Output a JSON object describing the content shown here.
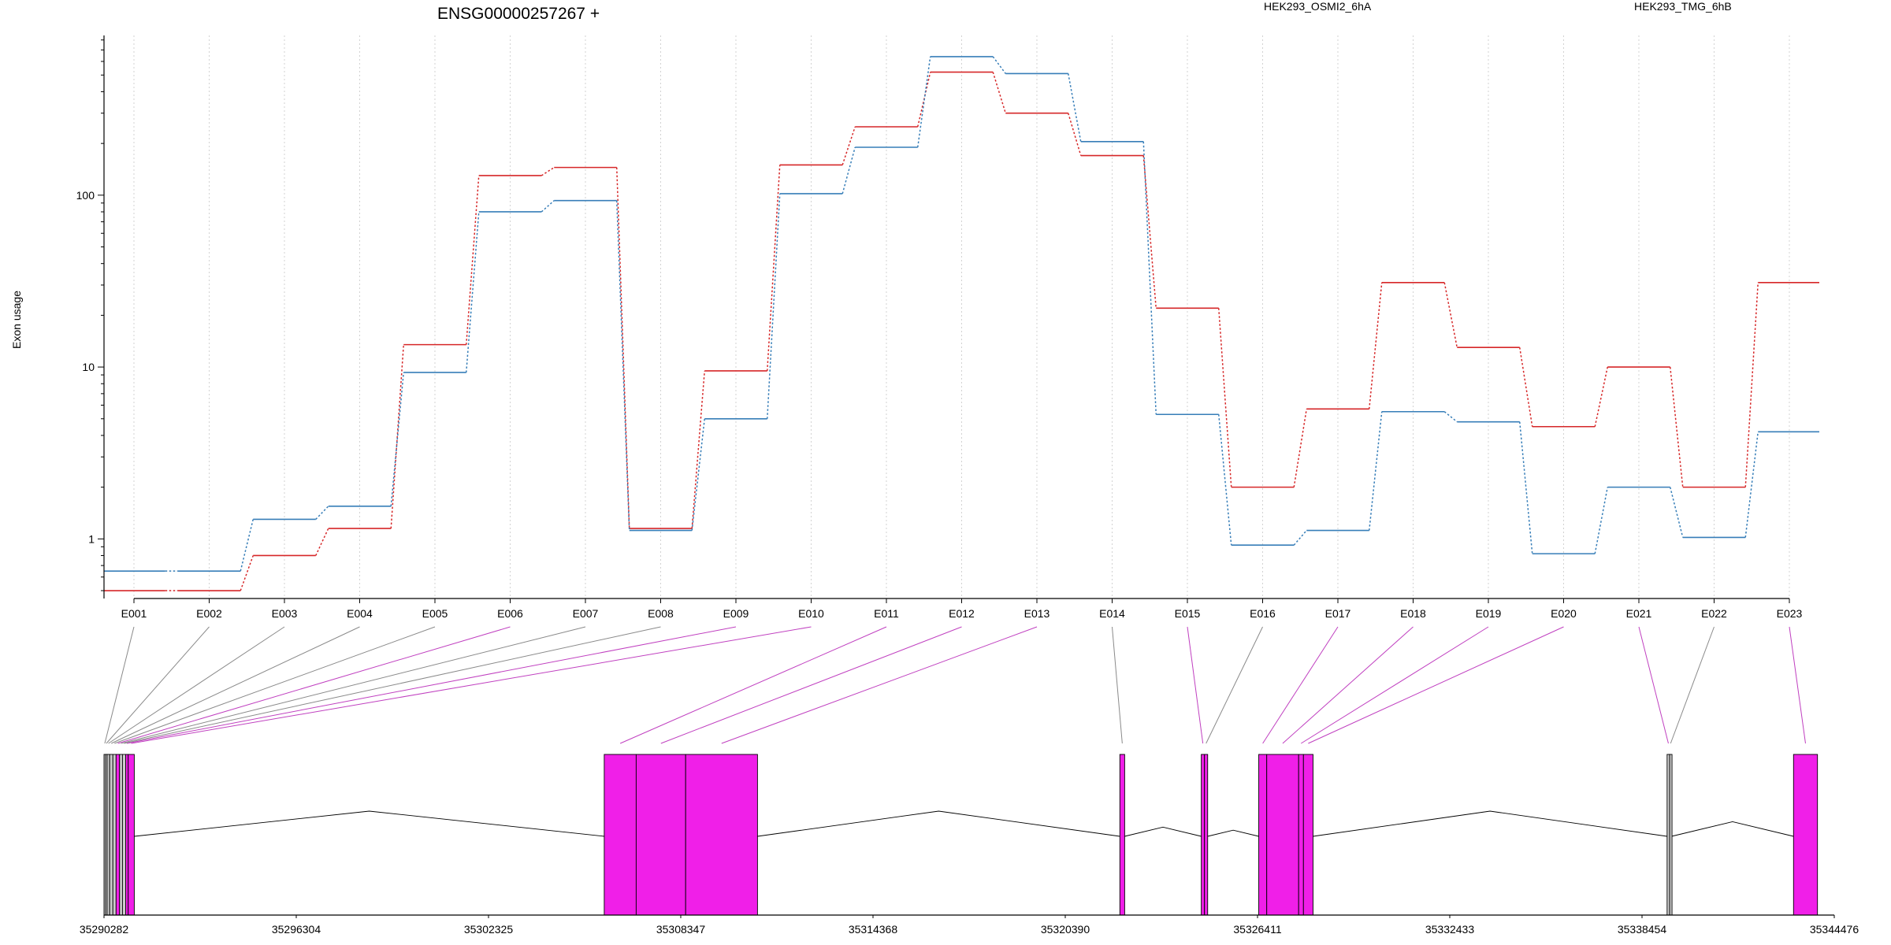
{
  "chart_data": {
    "type": "line",
    "title": "ENSG00000257267 +",
    "ylabel": "Exon usage",
    "xlabel": "",
    "yscale": "log",
    "ylim": [
      0.45,
      850
    ],
    "y_ticks": [
      1,
      10,
      100
    ],
    "y_tick_labels": [
      "1",
      "10",
      "100"
    ],
    "grid": "vertical dotted at each exon",
    "legend_placement": "top",
    "categories": [
      "E001",
      "E002",
      "E003",
      "E004",
      "E005",
      "E006",
      "E007",
      "E008",
      "E009",
      "E010",
      "E011",
      "E012",
      "E013",
      "E014",
      "E015",
      "E016",
      "E017",
      "E018",
      "E019",
      "E020",
      "E021",
      "E022",
      "E023"
    ],
    "series": [
      {
        "name": "HEK293_OSMI2_6hA",
        "color": "#d62728",
        "values": [
          0.5,
          0.5,
          0.8,
          1.15,
          13.5,
          130,
          145,
          1.15,
          9.5,
          150,
          250,
          520,
          300,
          170,
          22,
          2.0,
          5.7,
          31,
          13,
          4.5,
          10,
          2.0,
          31
        ]
      },
      {
        "name": "HEK293_TMG_6hB",
        "color": "#377eb8",
        "values": [
          0.65,
          0.65,
          1.3,
          1.55,
          9.3,
          80,
          93,
          1.12,
          5.0,
          102,
          190,
          640,
          510,
          205,
          5.3,
          0.92,
          1.12,
          5.5,
          4.8,
          0.82,
          2.0,
          1.02,
          4.2
        ]
      }
    ],
    "gene_model": {
      "coordinate_ticks": [
        "35290282",
        "35296304",
        "35302325",
        "35308347",
        "35314368",
        "35320390",
        "35326411",
        "35332433",
        "35338454",
        "35344476"
      ],
      "range": [
        35290282,
        35344476
      ],
      "highlight_color": "#f01fe8",
      "plain_color": "#cccccc",
      "exons": [
        {
          "id": "E001",
          "start": 35290282,
          "end": 35290330,
          "highlight": false
        },
        {
          "id": "E002",
          "start": 35290330,
          "end": 35290380,
          "highlight": false
        },
        {
          "id": "E003",
          "start": 35290380,
          "end": 35290460,
          "highlight": false
        },
        {
          "id": "E004",
          "start": 35290460,
          "end": 35290560,
          "highlight": false
        },
        {
          "id": "E005",
          "start": 35290560,
          "end": 35290660,
          "highlight": false
        },
        {
          "id": "E006",
          "start": 35290660,
          "end": 35290770,
          "highlight": true
        },
        {
          "id": "E007",
          "start": 35290770,
          "end": 35290860,
          "highlight": false
        },
        {
          "id": "E008",
          "start": 35290860,
          "end": 35290960,
          "highlight": false
        },
        {
          "id": "E009",
          "start": 35290960,
          "end": 35291040,
          "highlight": true
        },
        {
          "id": "E010",
          "start": 35291040,
          "end": 35291230,
          "highlight": true
        },
        {
          "id": "E011",
          "start": 35305950,
          "end": 35306950,
          "highlight": true
        },
        {
          "id": "E012",
          "start": 35306950,
          "end": 35308500,
          "highlight": true
        },
        {
          "id": "E013",
          "start": 35308500,
          "end": 35310750,
          "highlight": true
        },
        {
          "id": "E014",
          "start": 35322100,
          "end": 35322250,
          "highlight": true
        },
        {
          "id": "E015",
          "start": 35324650,
          "end": 35324750,
          "highlight": true
        },
        {
          "id": "E016",
          "start": 35324750,
          "end": 35324850,
          "highlight": true
        },
        {
          "id": "E017",
          "start": 35326450,
          "end": 35326700,
          "highlight": true
        },
        {
          "id": "E018",
          "start": 35326700,
          "end": 35327700,
          "highlight": true
        },
        {
          "id": "E019",
          "start": 35327700,
          "end": 35327850,
          "highlight": true
        },
        {
          "id": "E020",
          "start": 35327850,
          "end": 35328150,
          "highlight": true
        },
        {
          "id": "E021",
          "start": 35339240,
          "end": 35339320,
          "highlight": false
        },
        {
          "id": "E022",
          "start": 35339320,
          "end": 35339380,
          "highlight": false
        },
        {
          "id": "E023",
          "start": 35343200,
          "end": 35343950,
          "highlight": true
        }
      ],
      "connector_highlight": [
        false,
        false,
        false,
        false,
        false,
        true,
        false,
        false,
        true,
        true,
        true,
        true,
        true,
        false,
        true,
        false,
        true,
        true,
        true,
        true,
        true,
        false,
        true
      ]
    }
  }
}
